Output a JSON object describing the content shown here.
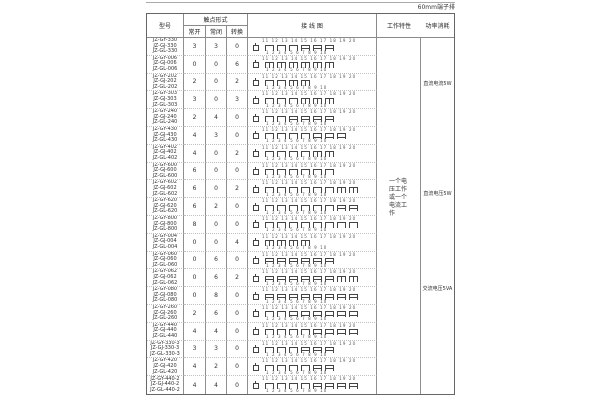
{
  "top_label": "60mm端子排",
  "header": {
    "model": "型号",
    "contact_form": "触点形式",
    "no": "常开",
    "nc": "常闭",
    "co": "转换",
    "wiring": "接 线 图",
    "characteristics": "工作特性",
    "power": "功率消耗"
  },
  "characteristics_text": "一个电压工作或一个电流工作",
  "power_labels": [
    "直流电流5W",
    "直流电压5W",
    "交流电压5VA"
  ],
  "diagram": {
    "top_terminals": "11 12 13 14 15 16 17 18 19 20",
    "bottom_terminals": "1 2 3 4 5 6 7 8 9 10"
  },
  "rows": [
    {
      "models": [
        "JZ-GY-330",
        "JZ-GJ-330",
        "JZ-GL-330"
      ],
      "no": "3",
      "nc": "3",
      "co": "0"
    },
    {
      "models": [
        "JZ-GY-006",
        "JZ-GJ-006",
        "JZ-GL-006"
      ],
      "no": "0",
      "nc": "0",
      "co": "6"
    },
    {
      "models": [
        "JZ-GY-202",
        "JZ-GJ-202",
        "JZ-GL-202"
      ],
      "no": "2",
      "nc": "0",
      "co": "2"
    },
    {
      "models": [
        "JZ-GY-303",
        "JZ-GJ-303",
        "JZ-GL-303"
      ],
      "no": "3",
      "nc": "0",
      "co": "3"
    },
    {
      "models": [
        "JZ-GY-240",
        "JZ-GJ-240",
        "JZ-GL-240"
      ],
      "no": "2",
      "nc": "4",
      "co": "0"
    },
    {
      "models": [
        "JZ-GY-430",
        "JZ-GJ-430",
        "JZ-GL-430"
      ],
      "no": "4",
      "nc": "3",
      "co": "0"
    },
    {
      "models": [
        "JZ-GY-402",
        "JZ-GJ-402",
        "JZ-GL-402"
      ],
      "no": "4",
      "nc": "0",
      "co": "2"
    },
    {
      "models": [
        "JZ-GY-600",
        "JZ-GJ-600",
        "JZ-GL-600"
      ],
      "no": "6",
      "nc": "0",
      "co": "0"
    },
    {
      "models": [
        "JZ-GY-602",
        "JZ-GJ-602",
        "JZ-GL-602"
      ],
      "no": "6",
      "nc": "0",
      "co": "2"
    },
    {
      "models": [
        "JZ-GY-620",
        "JZ-GJ-620",
        "JZ-GL-620"
      ],
      "no": "6",
      "nc": "2",
      "co": "0"
    },
    {
      "models": [
        "JZ-GY-800",
        "JZ-GJ-800",
        "JZ-GL-800"
      ],
      "no": "8",
      "nc": "0",
      "co": "0"
    },
    {
      "models": [
        "JZ-GY-004",
        "JZ-GJ-004",
        "JZ-GL-004"
      ],
      "no": "0",
      "nc": "0",
      "co": "4"
    },
    {
      "models": [
        "JZ-GY-060",
        "JZ-GJ-060",
        "JZ-GL-060"
      ],
      "no": "0",
      "nc": "6",
      "co": "0"
    },
    {
      "models": [
        "JZ-GY-062",
        "JZ-GJ-062",
        "JZ-GL-062"
      ],
      "no": "0",
      "nc": "6",
      "co": "2"
    },
    {
      "models": [
        "JZ-GY-080",
        "JZ-GJ-080",
        "JZ-GL-080"
      ],
      "no": "0",
      "nc": "8",
      "co": "0"
    },
    {
      "models": [
        "JZ-GY-260",
        "JZ-GJ-260",
        "JZ-GL-260"
      ],
      "no": "2",
      "nc": "6",
      "co": "0"
    },
    {
      "models": [
        "JZ-GY-440",
        "JZ-GJ-440",
        "JZ-GL-440"
      ],
      "no": "4",
      "nc": "4",
      "co": "0"
    },
    {
      "models": [
        "JZ-GY-330-3",
        "JZ-GJ-330-3",
        "JZ-GL-330-3"
      ],
      "no": "3",
      "nc": "3",
      "co": "0"
    },
    {
      "models": [
        "JZ-GY-420",
        "JZ-GJ-420",
        "JZ-GL-420"
      ],
      "no": "4",
      "nc": "2",
      "co": "0"
    },
    {
      "models": [
        "JZ-GY-440-2",
        "JZ-GJ-440-2",
        "JZ-GL-440-2"
      ],
      "no": "4",
      "nc": "4",
      "co": "0"
    }
  ]
}
